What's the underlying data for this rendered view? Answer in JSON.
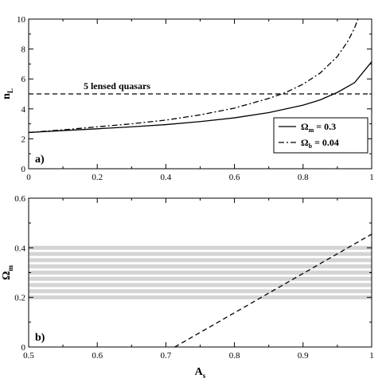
{
  "chart_data": [
    {
      "type": "line",
      "panel_label": "a)",
      "xlim": [
        0,
        1
      ],
      "ylim": [
        0,
        10
      ],
      "x_ticks": [
        0,
        0.2,
        0.4,
        0.6,
        0.8,
        1
      ],
      "x_tick_labels": [
        "0",
        "0.2",
        "0.4",
        "0.6",
        "0.8",
        "1"
      ],
      "y_ticks": [
        0,
        2,
        4,
        6,
        8,
        10
      ],
      "y_tick_labels": [
        "0",
        "2",
        "4",
        "6",
        "8",
        "10"
      ],
      "ylabel": {
        "main": "n",
        "sub": "L"
      },
      "annotation": "5 lensed quasars",
      "series": [
        {
          "name": "Ω_m = 0.3",
          "legend_base": "Ω",
          "legend_sub": "m",
          "legend_value": " = 0.3",
          "style": "solid",
          "x": [
            0,
            0.1,
            0.2,
            0.3,
            0.4,
            0.5,
            0.6,
            0.7,
            0.8,
            0.85,
            0.9,
            0.95,
            1.0
          ],
          "y": [
            2.42,
            2.55,
            2.67,
            2.8,
            2.95,
            3.15,
            3.4,
            3.75,
            4.25,
            4.6,
            5.1,
            5.75,
            7.15
          ]
        },
        {
          "name": "Ω_b = 0.04",
          "legend_base": "Ω",
          "legend_sub": "b",
          "legend_value": " = 0.04",
          "style": "dashdot",
          "x": [
            0,
            0.1,
            0.2,
            0.3,
            0.4,
            0.5,
            0.6,
            0.7,
            0.75,
            0.8,
            0.85,
            0.9,
            0.93,
            0.95,
            0.96
          ],
          "y": [
            2.42,
            2.6,
            2.8,
            3.0,
            3.25,
            3.6,
            4.05,
            4.7,
            5.1,
            5.65,
            6.4,
            7.5,
            8.5,
            9.4,
            10.0
          ]
        },
        {
          "name": "5 lensed quasars",
          "style": "dashed",
          "x": [
            0,
            1
          ],
          "y": [
            5,
            5
          ]
        }
      ]
    },
    {
      "type": "line",
      "panel_label": "b)",
      "xlim": [
        0.5,
        1
      ],
      "ylim": [
        0,
        0.6
      ],
      "x_ticks": [
        0.5,
        0.6,
        0.7,
        0.8,
        0.9,
        1
      ],
      "x_tick_labels": [
        "0.5",
        "0.6",
        "0.7",
        "0.8",
        "0.9",
        "1"
      ],
      "y_ticks": [
        0,
        0.2,
        0.4,
        0.6
      ],
      "y_tick_labels": [
        "0",
        "0.2",
        "0.4",
        "0.6"
      ],
      "xlabel": {
        "main": "A",
        "sub": "s"
      },
      "ylabel": {
        "main": "Ω",
        "sub": "m"
      },
      "shaded_band": {
        "y": [
          0.2,
          0.4
        ],
        "style": "horizontal grey stripes",
        "stripe_count": 9
      },
      "series": [
        {
          "style": "dashed",
          "x": [
            0.713,
            1.0
          ],
          "y": [
            0.0,
            0.455
          ]
        }
      ]
    }
  ],
  "colors": {
    "line": "#000000",
    "stripe": "#d4d4d4",
    "background": "#ffffff"
  }
}
